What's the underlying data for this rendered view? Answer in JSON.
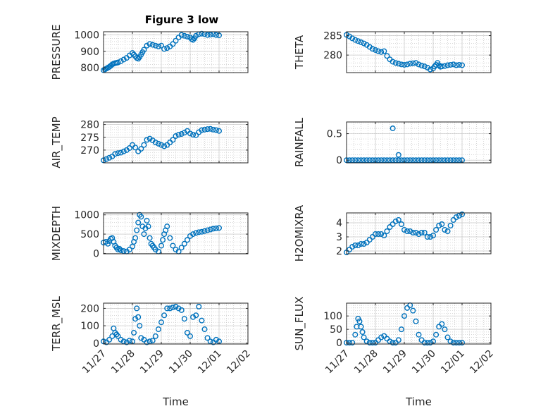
{
  "figure_title": "Figure 3 low",
  "x_tick_labels": [
    "11/27",
    "11/28",
    "11/29",
    "11/30",
    "12/01",
    "12/02"
  ],
  "x_axis_label": "Time",
  "marker_color": "#0072BD",
  "chart_data": [
    {
      "type": "scatter",
      "ylabel": "PRESSURE",
      "xlim": [
        0,
        5
      ],
      "ylim": [
        770,
        1020
      ],
      "yticks": [
        800,
        900,
        1000
      ],
      "grid": true,
      "x": [
        0,
        0.05,
        0.1,
        0.15,
        0.2,
        0.25,
        0.3,
        0.35,
        0.4,
        0.45,
        0.5,
        0.6,
        0.7,
        0.8,
        0.9,
        1.0,
        1.05,
        1.1,
        1.15,
        1.2,
        1.25,
        1.3,
        1.35,
        1.4,
        1.5,
        1.6,
        1.7,
        1.8,
        1.9,
        2.0,
        2.1,
        2.2,
        2.3,
        2.4,
        2.5,
        2.6,
        2.7,
        2.8,
        2.9,
        3.0,
        3.05,
        3.1,
        3.15,
        3.2,
        3.3,
        3.4,
        3.5,
        3.6,
        3.7,
        3.8,
        3.9,
        4.0
      ],
      "values": [
        785,
        790,
        795,
        800,
        805,
        812,
        820,
        825,
        828,
        830,
        832,
        840,
        850,
        860,
        875,
        890,
        880,
        870,
        860,
        855,
        865,
        880,
        895,
        910,
        935,
        945,
        940,
        935,
        930,
        935,
        915,
        920,
        930,
        945,
        965,
        985,
        1000,
        995,
        990,
        985,
        975,
        970,
        980,
        995,
        1005,
        1008,
        1005,
        1000,
        1002,
        1005,
        1000,
        998
      ]
    },
    {
      "type": "scatter",
      "ylabel": "THETA",
      "xlim": [
        0,
        5
      ],
      "ylim": [
        275.5,
        286
      ],
      "yticks": [
        280,
        285
      ],
      "grid": true,
      "x": [
        0,
        0.1,
        0.2,
        0.3,
        0.4,
        0.5,
        0.6,
        0.7,
        0.8,
        0.9,
        1.0,
        1.1,
        1.2,
        1.3,
        1.4,
        1.5,
        1.6,
        1.7,
        1.8,
        1.9,
        2.0,
        2.1,
        2.2,
        2.3,
        2.4,
        2.5,
        2.6,
        2.7,
        2.8,
        2.9,
        3.0,
        3.05,
        3.1,
        3.15,
        3.2,
        3.25,
        3.3,
        3.4,
        3.5,
        3.6,
        3.7,
        3.8,
        3.9,
        4.0
      ],
      "values": [
        285.2,
        284.8,
        284.3,
        283.9,
        283.6,
        283.3,
        283.0,
        282.6,
        282.1,
        281.6,
        281.3,
        281.0,
        280.8,
        281.0,
        279.8,
        278.9,
        278.3,
        278.0,
        277.8,
        277.6,
        277.5,
        277.6,
        277.8,
        277.9,
        278.0,
        277.6,
        277.3,
        277.1,
        276.8,
        276.3,
        276.6,
        277.1,
        277.5,
        278.0,
        277.4,
        277.0,
        277.1,
        277.2,
        277.4,
        277.5,
        277.6,
        277.4,
        277.5,
        277.4
      ]
    },
    {
      "type": "scatter",
      "ylabel": "AIR_TEMP",
      "xlim": [
        0,
        5
      ],
      "ylim": [
        265,
        281
      ],
      "yticks": [
        270,
        275,
        280
      ],
      "grid": true,
      "x": [
        0,
        0.1,
        0.2,
        0.3,
        0.4,
        0.5,
        0.6,
        0.7,
        0.8,
        0.9,
        1.0,
        1.1,
        1.2,
        1.3,
        1.4,
        1.5,
        1.6,
        1.7,
        1.8,
        1.9,
        2.0,
        2.1,
        2.2,
        2.3,
        2.4,
        2.5,
        2.6,
        2.7,
        2.8,
        2.9,
        3.0,
        3.1,
        3.2,
        3.3,
        3.4,
        3.5,
        3.6,
        3.7,
        3.8,
        3.9,
        4.0
      ],
      "values": [
        266,
        266.5,
        267,
        267.5,
        268.5,
        268.8,
        269,
        269.5,
        270,
        270.8,
        272,
        271,
        269.5,
        270.5,
        272,
        274,
        274.5,
        273.8,
        273,
        272.5,
        272,
        271.5,
        272,
        273,
        274,
        275.5,
        276,
        276.3,
        276.8,
        277.5,
        276.5,
        276,
        275.8,
        277,
        277.8,
        278,
        278.2,
        278.3,
        278,
        277.8,
        277.5
      ]
    },
    {
      "type": "scatter",
      "ylabel": "RAINFALL",
      "xlim": [
        0,
        5
      ],
      "ylim": [
        -0.05,
        0.72
      ],
      "yticks": [
        0,
        0.5
      ],
      "grid": true,
      "x": [
        0,
        0.1,
        0.2,
        0.3,
        0.4,
        0.5,
        0.6,
        0.7,
        0.8,
        0.9,
        1.0,
        1.1,
        1.2,
        1.3,
        1.4,
        1.5,
        1.6,
        1.7,
        1.8,
        1.9,
        2.0,
        2.1,
        2.2,
        2.3,
        2.4,
        2.5,
        2.6,
        2.7,
        2.8,
        2.9,
        3.0,
        3.1,
        3.2,
        3.3,
        3.4,
        3.5,
        3.6,
        3.7,
        3.8,
        3.9,
        4.0,
        1.6,
        1.8
      ],
      "values": [
        0,
        0,
        0,
        0,
        0,
        0,
        0,
        0,
        0,
        0,
        0,
        0,
        0,
        0,
        0,
        0,
        0,
        0,
        0,
        0,
        0,
        0,
        0,
        0,
        0,
        0,
        0,
        0,
        0,
        0,
        0,
        0,
        0,
        0,
        0,
        0,
        0,
        0,
        0,
        0,
        0,
        0.6,
        0.1
      ]
    },
    {
      "type": "scatter",
      "ylabel": "MIXDEPTH",
      "xlim": [
        0,
        5
      ],
      "ylim": [
        -10,
        1050
      ],
      "yticks": [
        0,
        500,
        1000
      ],
      "grid": true,
      "x": [
        0,
        0.08,
        0.15,
        0.2,
        0.25,
        0.3,
        0.35,
        0.4,
        0.45,
        0.5,
        0.55,
        0.6,
        0.7,
        0.8,
        0.9,
        1.0,
        1.05,
        1.1,
        1.15,
        1.2,
        1.25,
        1.3,
        1.35,
        1.4,
        1.45,
        1.5,
        1.55,
        1.6,
        1.65,
        1.7,
        1.75,
        1.8,
        1.9,
        2.0,
        2.05,
        2.1,
        2.15,
        2.2,
        2.3,
        2.4,
        2.5,
        2.6,
        2.7,
        2.8,
        2.9,
        3.0,
        3.1,
        3.2,
        3.3,
        3.4,
        3.5,
        3.6,
        3.7,
        3.8,
        3.9,
        4.0
      ],
      "values": [
        280,
        300,
        250,
        320,
        380,
        400,
        300,
        200,
        150,
        100,
        120,
        80,
        60,
        50,
        100,
        180,
        300,
        400,
        600,
        800,
        1000,
        950,
        700,
        500,
        650,
        850,
        700,
        400,
        250,
        200,
        150,
        100,
        50,
        200,
        350,
        500,
        600,
        700,
        400,
        200,
        100,
        50,
        150,
        250,
        350,
        450,
        500,
        530,
        550,
        560,
        580,
        600,
        620,
        640,
        650,
        660
      ]
    },
    {
      "type": "scatter",
      "ylabel": "H2OMIXRA",
      "xlim": [
        0,
        5
      ],
      "ylim": [
        1.8,
        4.7
      ],
      "yticks": [
        2,
        3,
        4
      ],
      "grid": true,
      "x": [
        0,
        0.1,
        0.2,
        0.3,
        0.4,
        0.5,
        0.6,
        0.7,
        0.8,
        0.9,
        1.0,
        1.1,
        1.2,
        1.3,
        1.4,
        1.5,
        1.6,
        1.7,
        1.8,
        1.9,
        2.0,
        2.1,
        2.2,
        2.3,
        2.4,
        2.5,
        2.6,
        2.7,
        2.8,
        2.9,
        3.0,
        3.1,
        3.2,
        3.3,
        3.4,
        3.5,
        3.6,
        3.7,
        3.8,
        3.9,
        4.0
      ],
      "values": [
        1.9,
        2.1,
        2.3,
        2.4,
        2.4,
        2.5,
        2.5,
        2.6,
        2.8,
        3.0,
        3.2,
        3.2,
        3.2,
        3.1,
        3.4,
        3.7,
        3.9,
        4.1,
        4.2,
        3.9,
        3.5,
        3.4,
        3.4,
        3.3,
        3.3,
        3.2,
        3.3,
        3.3,
        3.0,
        3.0,
        3.1,
        3.5,
        3.8,
        3.9,
        3.5,
        3.4,
        3.8,
        4.2,
        4.4,
        4.5,
        4.6
      ]
    },
    {
      "type": "scatter",
      "ylabel": "TERR_MSL",
      "xlim": [
        0,
        5
      ],
      "ylim": [
        -5,
        230
      ],
      "yticks": [
        0,
        100,
        200
      ],
      "grid": true,
      "x": [
        0,
        0.1,
        0.2,
        0.3,
        0.35,
        0.4,
        0.45,
        0.5,
        0.6,
        0.7,
        0.8,
        0.9,
        1.0,
        1.05,
        1.1,
        1.15,
        1.2,
        1.25,
        1.3,
        1.4,
        1.5,
        1.6,
        1.7,
        1.8,
        1.9,
        2.0,
        2.1,
        2.2,
        2.3,
        2.4,
        2.5,
        2.6,
        2.7,
        2.8,
        2.9,
        3.0,
        3.1,
        3.2,
        3.3,
        3.4,
        3.5,
        3.6,
        3.7,
        3.8,
        3.9,
        4.0
      ],
      "values": [
        10,
        5,
        20,
        40,
        85,
        60,
        50,
        40,
        20,
        10,
        5,
        15,
        10,
        60,
        140,
        200,
        150,
        100,
        30,
        20,
        5,
        10,
        15,
        40,
        80,
        120,
        160,
        200,
        200,
        205,
        210,
        200,
        190,
        140,
        60,
        40,
        150,
        160,
        210,
        130,
        80,
        30,
        10,
        5,
        20,
        10
      ]
    },
    {
      "type": "scatter",
      "ylabel": "SUN_FLUX",
      "xlim": [
        0,
        5
      ],
      "ylim": [
        -5,
        148
      ],
      "yticks": [
        0,
        50,
        100
      ],
      "grid": true,
      "x": [
        0,
        0.1,
        0.2,
        0.3,
        0.35,
        0.4,
        0.45,
        0.5,
        0.55,
        0.6,
        0.7,
        0.8,
        0.9,
        1.0,
        1.1,
        1.2,
        1.3,
        1.4,
        1.5,
        1.6,
        1.7,
        1.8,
        1.9,
        2.0,
        2.1,
        2.2,
        2.3,
        2.4,
        2.5,
        2.6,
        2.7,
        2.8,
        2.9,
        3.0,
        3.1,
        3.2,
        3.3,
        3.4,
        3.5,
        3.6,
        3.7,
        3.8,
        3.9,
        4.0
      ],
      "values": [
        0,
        0,
        0,
        30,
        60,
        90,
        80,
        60,
        40,
        20,
        5,
        0,
        0,
        0,
        10,
        20,
        25,
        15,
        5,
        0,
        0,
        10,
        50,
        100,
        130,
        140,
        120,
        80,
        30,
        10,
        0,
        0,
        0,
        5,
        30,
        60,
        70,
        50,
        20,
        5,
        0,
        0,
        0,
        0
      ]
    }
  ]
}
